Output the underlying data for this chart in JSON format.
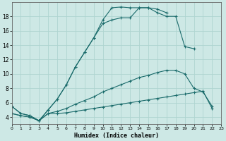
{
  "xlabel": "Humidex (Indice chaleur)",
  "background_color": "#cde8e5",
  "grid_color": "#afd4d0",
  "line_color": "#1a6b6b",
  "series": [
    {
      "x": [
        0,
        1,
        2,
        3,
        4,
        5,
        6,
        7,
        8,
        9,
        10,
        11,
        12,
        13,
        14,
        15,
        16,
        17,
        18,
        19,
        20,
        21,
        22
      ],
      "y": [
        5.5,
        4.5,
        4.2,
        3.5,
        5.0,
        6.5,
        8.5,
        11.0,
        13.0,
        15.0,
        17.0,
        17.5,
        17.8,
        17.8,
        19.2,
        19.2,
        18.5,
        18.0,
        18.0,
        13.8,
        13.5,
        null,
        null
      ]
    },
    {
      "x": [
        0,
        1,
        2,
        3,
        4,
        5,
        6,
        7,
        8,
        9,
        10,
        11,
        12,
        13,
        14,
        15,
        16,
        17
      ],
      "y": [
        5.5,
        4.5,
        4.2,
        3.5,
        5.0,
        6.5,
        8.5,
        11.0,
        13.0,
        15.0,
        17.5,
        19.2,
        19.3,
        19.2,
        19.2,
        19.2,
        19.0,
        18.5
      ]
    },
    {
      "x": [
        0,
        1,
        2,
        3,
        4,
        5,
        6,
        7,
        8,
        9,
        10,
        11,
        12,
        13,
        14,
        15,
        16,
        17,
        18,
        19,
        20,
        21,
        22
      ],
      "y": [
        4.5,
        4.2,
        4.0,
        3.5,
        4.5,
        4.8,
        5.2,
        5.8,
        6.3,
        6.8,
        7.5,
        8.0,
        8.5,
        9.0,
        9.5,
        9.8,
        10.2,
        10.5,
        10.5,
        10.0,
        8.0,
        7.5,
        5.5
      ]
    },
    {
      "x": [
        0,
        1,
        2,
        3,
        4,
        5,
        6,
        7,
        8,
        9,
        10,
        11,
        12,
        13,
        14,
        15,
        16,
        17,
        18,
        19,
        20,
        21,
        22
      ],
      "y": [
        4.5,
        4.2,
        4.0,
        3.5,
        4.5,
        4.5,
        4.6,
        4.8,
        5.0,
        5.2,
        5.4,
        5.6,
        5.8,
        6.0,
        6.2,
        6.4,
        6.6,
        6.8,
        7.0,
        7.2,
        7.4,
        7.6,
        5.2
      ]
    }
  ],
  "xlim": [
    0,
    23
  ],
  "ylim": [
    3.0,
    20.0
  ],
  "yticks": [
    4,
    6,
    8,
    10,
    12,
    14,
    16,
    18
  ],
  "xticks": [
    0,
    1,
    2,
    3,
    4,
    5,
    6,
    7,
    8,
    9,
    10,
    11,
    12,
    13,
    14,
    15,
    16,
    17,
    18,
    19,
    20,
    21,
    22,
    23
  ],
  "marker": "+",
  "markersize": 3,
  "linewidth": 0.8
}
